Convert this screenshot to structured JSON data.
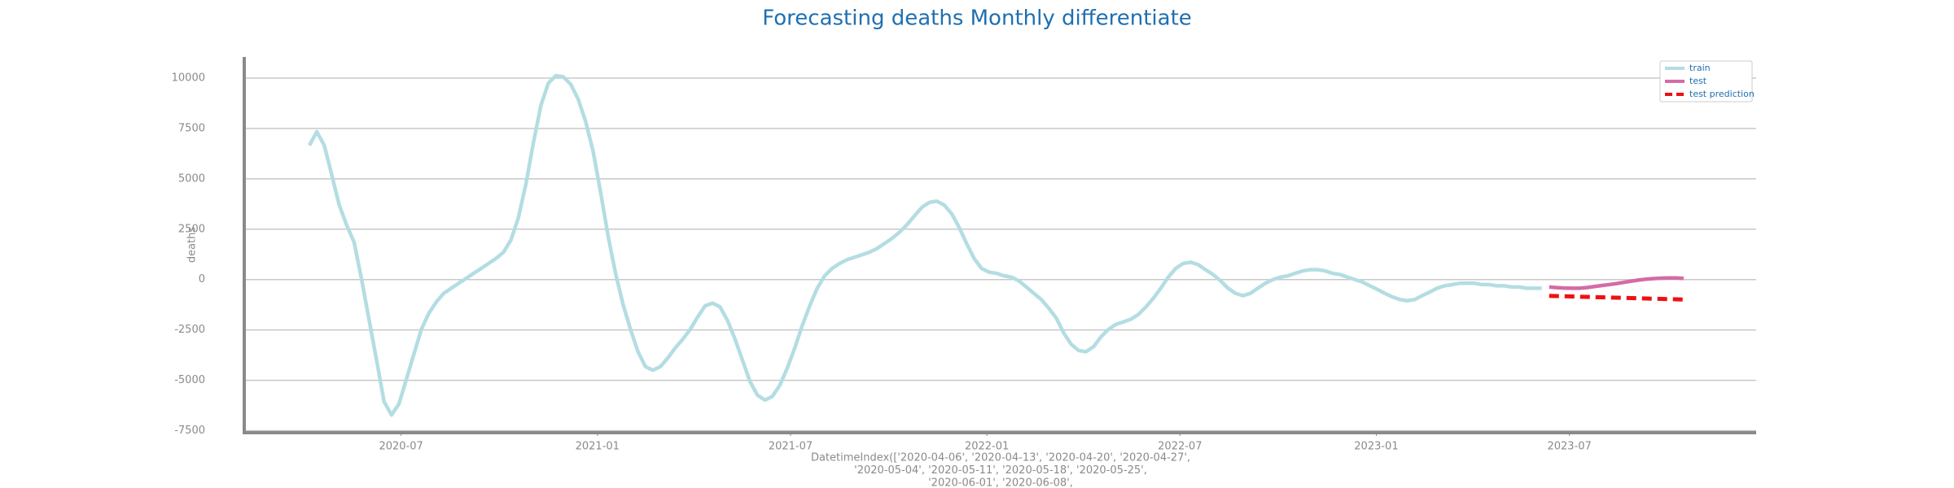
{
  "chart_data": {
    "type": "line",
    "title": "Forecasting deaths Monthly differentiate",
    "ylabel": "deaths",
    "xlabel": [
      "DatetimeIndex(['2020-04-06', '2020-04-13', '2020-04-20', '2020-04-27',",
      "'2020-05-04', '2020-05-11', '2020-05-18', '2020-05-25',",
      "'2020-06-01', '2020-06-08',"
    ],
    "xlim": [
      "2020-02-05",
      "2023-12-23"
    ],
    "ylim": [
      -7600,
      11050
    ],
    "xticks": [
      {
        "value": "2020-07-01",
        "label": "2020-07"
      },
      {
        "value": "2021-01-01",
        "label": "2021-01"
      },
      {
        "value": "2021-07-01",
        "label": "2021-07"
      },
      {
        "value": "2022-01-01",
        "label": "2022-01"
      },
      {
        "value": "2022-07-01",
        "label": "2022-07"
      },
      {
        "value": "2023-01-01",
        "label": "2023-01"
      },
      {
        "value": "2023-07-01",
        "label": "2023-07"
      }
    ],
    "yticks": [
      -7500,
      -5000,
      -2500,
      0,
      2500,
      5000,
      7500,
      10000
    ],
    "grid": "y",
    "legend": "upper right",
    "series": [
      {
        "name": "train",
        "color": "#b3dde2",
        "linestyle": "solid",
        "x": [
          "2020-04-06",
          "2020-04-13",
          "2020-04-20",
          "2020-04-27",
          "2020-05-04",
          "2020-05-11",
          "2020-05-18",
          "2020-05-25",
          "2020-06-01",
          "2020-06-08",
          "2020-06-15",
          "2020-06-22",
          "2020-06-29",
          "2020-07-06",
          "2020-07-13",
          "2020-07-20",
          "2020-07-27",
          "2020-08-03",
          "2020-08-10",
          "2020-08-17",
          "2020-08-24",
          "2020-08-31",
          "2020-09-07",
          "2020-09-14",
          "2020-09-21",
          "2020-09-28",
          "2020-10-05",
          "2020-10-12",
          "2020-10-19",
          "2020-10-26",
          "2020-11-02",
          "2020-11-09",
          "2020-11-16",
          "2020-11-23",
          "2020-11-30",
          "2020-12-07",
          "2020-12-14",
          "2020-12-21",
          "2020-12-28",
          "2021-01-04",
          "2021-01-11",
          "2021-01-18",
          "2021-01-25",
          "2021-02-01",
          "2021-02-08",
          "2021-02-15",
          "2021-02-22",
          "2021-03-01",
          "2021-03-08",
          "2021-03-15",
          "2021-03-22",
          "2021-03-29",
          "2021-04-05",
          "2021-04-12",
          "2021-04-19",
          "2021-04-26",
          "2021-05-03",
          "2021-05-10",
          "2021-05-17",
          "2021-05-24",
          "2021-05-31",
          "2021-06-07",
          "2021-06-14",
          "2021-06-21",
          "2021-06-28",
          "2021-07-05",
          "2021-07-12",
          "2021-07-19",
          "2021-07-26",
          "2021-08-02",
          "2021-08-09",
          "2021-08-16",
          "2021-08-23",
          "2021-08-30",
          "2021-09-06",
          "2021-09-13",
          "2021-09-20",
          "2021-09-27",
          "2021-10-04",
          "2021-10-11",
          "2021-10-18",
          "2021-10-25",
          "2021-11-01",
          "2021-11-08",
          "2021-11-15",
          "2021-11-22",
          "2021-11-29",
          "2021-12-06",
          "2021-12-13",
          "2021-12-20",
          "2021-12-27",
          "2022-01-03",
          "2022-01-10",
          "2022-01-17",
          "2022-01-24",
          "2022-01-31",
          "2022-02-07",
          "2022-02-14",
          "2022-02-21",
          "2022-02-28",
          "2022-03-07",
          "2022-03-14",
          "2022-03-21",
          "2022-03-28",
          "2022-04-04",
          "2022-04-11",
          "2022-04-18",
          "2022-04-25",
          "2022-05-02",
          "2022-05-09",
          "2022-05-16",
          "2022-05-23",
          "2022-05-30",
          "2022-06-06",
          "2022-06-13",
          "2022-06-20",
          "2022-06-27",
          "2022-07-04",
          "2022-07-11",
          "2022-07-18",
          "2022-07-25",
          "2022-08-01",
          "2022-08-08",
          "2022-08-15",
          "2022-08-22",
          "2022-08-29",
          "2022-09-05",
          "2022-09-12",
          "2022-09-19",
          "2022-09-26",
          "2022-10-03",
          "2022-10-10",
          "2022-10-17",
          "2022-10-24",
          "2022-10-31",
          "2022-11-07",
          "2022-11-14",
          "2022-11-21",
          "2022-11-28",
          "2022-12-05",
          "2022-12-12",
          "2022-12-19",
          "2022-12-26",
          "2023-01-02",
          "2023-01-09",
          "2023-01-16",
          "2023-01-23",
          "2023-01-30",
          "2023-02-06",
          "2023-02-13",
          "2023-02-20",
          "2023-02-27",
          "2023-03-06",
          "2023-03-13",
          "2023-03-20",
          "2023-03-27",
          "2023-04-03",
          "2023-04-10",
          "2023-04-17",
          "2023-04-24",
          "2023-05-01",
          "2023-05-08",
          "2023-05-15",
          "2023-05-22",
          "2023-05-29",
          "2023-06-05"
        ],
        "values": [
          6660,
          7340,
          6660,
          5200,
          3700,
          2700,
          1850,
          0,
          -2000,
          -4000,
          -6050,
          -6720,
          -6170,
          -4940,
          -3700,
          -2470,
          -1670,
          -1110,
          -680,
          -430,
          -185,
          60,
          310,
          550,
          800,
          1050,
          1360,
          1970,
          3085,
          4750,
          6790,
          8640,
          9750,
          10120,
          10060,
          9690,
          8950,
          7840,
          6360,
          4320,
          2160,
          310,
          -1230,
          -2470,
          -3580,
          -4320,
          -4500,
          -4320,
          -3890,
          -3390,
          -2960,
          -2470,
          -1850,
          -1300,
          -1170,
          -1360,
          -2040,
          -2960,
          -4010,
          -5060,
          -5740,
          -5980,
          -5800,
          -5240,
          -4380,
          -3390,
          -2280,
          -1300,
          -430,
          185,
          555,
          800,
          990,
          1110,
          1230,
          1360,
          1540,
          1790,
          2040,
          2345,
          2715,
          3150,
          3580,
          3830,
          3890,
          3700,
          3270,
          2590,
          1790,
          1050,
          555,
          370,
          310,
          185,
          120,
          -60,
          -370,
          -680,
          -990,
          -1420,
          -1910,
          -2650,
          -3210,
          -3520,
          -3580,
          -3330,
          -2840,
          -2470,
          -2220,
          -2100,
          -1970,
          -1730,
          -1360,
          -930,
          -430,
          120,
          555,
          800,
          860,
          740,
          490,
          250,
          -60,
          -430,
          -680,
          -800,
          -680,
          -430,
          -185,
          0,
          120,
          185,
          310,
          430,
          490,
          490,
          430,
          310,
          250,
          120,
          0,
          -120,
          -310,
          -490,
          -680,
          -860,
          -990,
          -1050,
          -990,
          -800,
          -620,
          -430,
          -310,
          -250,
          -185,
          -185,
          -185,
          -250,
          -250,
          -310,
          -310,
          -370,
          -370,
          -430,
          -430,
          -430
        ]
      },
      {
        "name": "test",
        "color": "#d56ba5",
        "linestyle": "solid",
        "x": [
          "2023-06-12",
          "2023-06-19",
          "2023-06-26",
          "2023-07-03",
          "2023-07-10",
          "2023-07-17",
          "2023-07-24",
          "2023-07-31",
          "2023-08-07",
          "2023-08-14",
          "2023-08-21",
          "2023-08-28",
          "2023-09-04",
          "2023-09-11",
          "2023-09-18",
          "2023-09-25",
          "2023-10-02",
          "2023-10-09",
          "2023-10-16"
        ],
        "values": [
          -370,
          -400,
          -420,
          -430,
          -430,
          -400,
          -350,
          -300,
          -250,
          -200,
          -140,
          -80,
          -20,
          20,
          50,
          70,
          80,
          80,
          60
        ]
      },
      {
        "name": "test prediction",
        "color": "#ee1111",
        "linestyle": "dashed",
        "x": [
          "2023-06-12",
          "2023-06-19",
          "2023-06-26",
          "2023-07-03",
          "2023-07-10",
          "2023-07-17",
          "2023-07-24",
          "2023-07-31",
          "2023-08-07",
          "2023-08-14",
          "2023-08-21",
          "2023-08-28",
          "2023-09-04",
          "2023-09-11",
          "2023-09-18",
          "2023-09-25",
          "2023-10-02",
          "2023-10-09",
          "2023-10-16"
        ],
        "values": [
          -810,
          -820,
          -830,
          -840,
          -850,
          -860,
          -870,
          -880,
          -890,
          -900,
          -910,
          -920,
          -930,
          -940,
          -950,
          -960,
          -970,
          -980,
          -990
        ]
      }
    ]
  }
}
